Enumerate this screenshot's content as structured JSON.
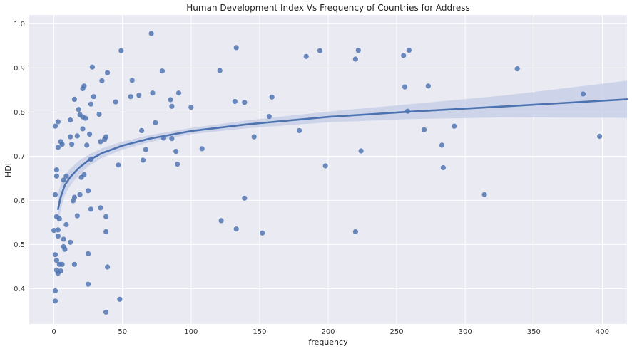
{
  "chart_data": {
    "type": "scatter",
    "title": "Human Development Index Vs Frequency of Countries for Address",
    "xlabel": "frequency",
    "ylabel": "HDI",
    "xlim": [
      -18,
      418
    ],
    "ylim": [
      0.32,
      1.02
    ],
    "xticks": [
      0,
      50,
      100,
      150,
      200,
      250,
      300,
      350,
      400
    ],
    "yticks": [
      0.4,
      0.5,
      0.6,
      0.7,
      0.8,
      0.9,
      1.0
    ],
    "xtick_labels": [
      "0",
      "50",
      "100",
      "150",
      "200",
      "250",
      "300",
      "350",
      "400"
    ],
    "ytick_labels": [
      "0.4",
      "0.5",
      "0.6",
      "0.7",
      "0.8",
      "0.9",
      "1.0"
    ],
    "grid": true,
    "colors": {
      "background": "#eaeaf2",
      "grid": "#ffffff",
      "points": "#4c72b0",
      "fit_line": "#4c72b0",
      "band": "#c3cce6"
    },
    "points": [
      [
        1,
        0.768
      ],
      [
        2,
        0.669
      ],
      [
        1,
        0.613
      ],
      [
        2,
        0.655
      ],
      [
        3,
        0.72
      ],
      [
        3,
        0.778
      ],
      [
        5,
        0.733
      ],
      [
        6,
        0.727
      ],
      [
        7,
        0.646
      ],
      [
        9,
        0.655
      ],
      [
        12,
        0.782
      ],
      [
        12,
        0.744
      ],
      [
        13,
        0.727
      ],
      [
        14,
        0.599
      ],
      [
        15,
        0.607
      ],
      [
        15,
        0.829
      ],
      [
        17,
        0.746
      ],
      [
        18,
        0.806
      ],
      [
        19,
        0.794
      ],
      [
        19,
        0.613
      ],
      [
        20,
        0.652
      ],
      [
        21,
        0.762
      ],
      [
        21,
        0.789
      ],
      [
        21,
        0.853
      ],
      [
        22,
        0.859
      ],
      [
        22,
        0.658
      ],
      [
        23,
        0.786
      ],
      [
        24,
        0.725
      ],
      [
        25,
        0.622
      ],
      [
        26,
        0.75
      ],
      [
        27,
        0.818
      ],
      [
        27,
        0.693
      ],
      [
        28,
        0.902
      ],
      [
        29,
        0.835
      ],
      [
        33,
        0.795
      ],
      [
        34,
        0.733
      ],
      [
        35,
        0.871
      ],
      [
        37,
        0.738
      ],
      [
        38,
        0.744
      ],
      [
        39,
        0.889
      ],
      [
        45,
        0.823
      ],
      [
        47,
        0.68
      ],
      [
        49,
        0.939
      ],
      [
        56,
        0.835
      ],
      [
        57,
        0.872
      ],
      [
        62,
        0.838
      ],
      [
        64,
        0.758
      ],
      [
        65,
        0.691
      ],
      [
        67,
        0.715
      ],
      [
        71,
        0.978
      ],
      [
        72,
        0.843
      ],
      [
        74,
        0.776
      ],
      [
        79,
        0.893
      ],
      [
        80,
        0.741
      ],
      [
        85,
        0.828
      ],
      [
        86,
        0.813
      ],
      [
        86,
        0.74
      ],
      [
        89,
        0.711
      ],
      [
        90,
        0.682
      ],
      [
        91,
        0.843
      ],
      [
        100,
        0.811
      ],
      [
        108,
        0.717
      ],
      [
        121,
        0.894
      ],
      [
        132,
        0.824
      ],
      [
        133,
        0.946
      ],
      [
        139,
        0.822
      ],
      [
        146,
        0.744
      ],
      [
        157,
        0.79
      ],
      [
        159,
        0.834
      ],
      [
        179,
        0.758
      ],
      [
        184,
        0.926
      ],
      [
        194,
        0.939
      ],
      [
        198,
        0.678
      ],
      [
        220,
        0.92
      ],
      [
        222,
        0.94
      ],
      [
        224,
        0.712
      ],
      [
        255,
        0.928
      ],
      [
        256,
        0.857
      ],
      [
        258,
        0.802
      ],
      [
        259,
        0.94
      ],
      [
        270,
        0.76
      ],
      [
        273,
        0.859
      ],
      [
        283,
        0.725
      ],
      [
        284,
        0.674
      ],
      [
        292,
        0.768
      ],
      [
        314,
        0.613
      ],
      [
        338,
        0.898
      ],
      [
        386,
        0.841
      ],
      [
        398,
        0.745
      ],
      [
        0,
        0.532
      ],
      [
        1,
        0.477
      ],
      [
        1,
        0.372
      ],
      [
        1,
        0.395
      ],
      [
        2,
        0.464
      ],
      [
        2,
        0.442
      ],
      [
        2,
        0.563
      ],
      [
        3,
        0.533
      ],
      [
        3,
        0.519
      ],
      [
        3,
        0.435
      ],
      [
        4,
        0.558
      ],
      [
        4,
        0.455
      ],
      [
        5,
        0.44
      ],
      [
        6,
        0.455
      ],
      [
        7,
        0.512
      ],
      [
        7,
        0.495
      ],
      [
        8,
        0.489
      ],
      [
        9,
        0.545
      ],
      [
        12,
        0.505
      ],
      [
        15,
        0.455
      ],
      [
        17,
        0.565
      ],
      [
        25,
        0.479
      ],
      [
        25,
        0.41
      ],
      [
        27,
        0.58
      ],
      [
        34,
        0.583
      ],
      [
        38,
        0.563
      ],
      [
        38,
        0.529
      ],
      [
        38,
        0.347
      ],
      [
        39,
        0.449
      ],
      [
        48,
        0.376
      ],
      [
        122,
        0.554
      ],
      [
        133,
        0.535
      ],
      [
        139,
        0.605
      ],
      [
        152,
        0.526
      ],
      [
        220,
        0.529
      ]
    ],
    "fit": {
      "model": "log",
      "x": [
        3,
        5,
        8,
        12,
        18,
        25,
        35,
        50,
        70,
        100,
        140,
        200,
        260,
        330,
        418
      ],
      "y": [
        0.58,
        0.608,
        0.635,
        0.653,
        0.673,
        0.69,
        0.707,
        0.724,
        0.74,
        0.757,
        0.772,
        0.789,
        0.801,
        0.813,
        0.829
      ],
      "band_upper": [
        0.618,
        0.636,
        0.657,
        0.672,
        0.689,
        0.703,
        0.718,
        0.733,
        0.748,
        0.764,
        0.781,
        0.801,
        0.818,
        0.838,
        0.871
      ],
      "band_lower": [
        0.542,
        0.58,
        0.613,
        0.634,
        0.657,
        0.677,
        0.696,
        0.715,
        0.732,
        0.75,
        0.763,
        0.777,
        0.784,
        0.788,
        0.787
      ]
    }
  }
}
